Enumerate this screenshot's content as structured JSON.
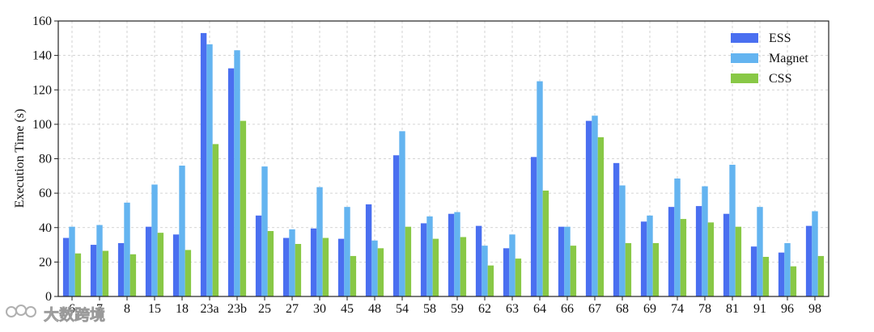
{
  "chart_data": {
    "type": "bar",
    "categories": [
      "6",
      "7",
      "8",
      "15",
      "18",
      "23a",
      "23b",
      "25",
      "27",
      "30",
      "45",
      "48",
      "54",
      "58",
      "59",
      "62",
      "63",
      "64",
      "66",
      "67",
      "68",
      "69",
      "74",
      "78",
      "81",
      "91",
      "96",
      "98"
    ],
    "series": [
      {
        "name": "ESS",
        "color": "#4a6ff0",
        "values": [
          34,
          30,
          31,
          40.5,
          36,
          153,
          132.5,
          47,
          34,
          39.5,
          33.5,
          53.5,
          82,
          42.5,
          48,
          41,
          28,
          81,
          40.5,
          102,
          77.5,
          43.5,
          52,
          52.5,
          48,
          29,
          25.5,
          41
        ]
      },
      {
        "name": "Magnet",
        "color": "#64b4f0",
        "values": [
          40.5,
          41.5,
          54.5,
          65,
          76,
          146.5,
          143,
          75.5,
          39,
          63.5,
          52,
          32.5,
          96,
          46.5,
          49,
          29.5,
          36,
          125,
          40.5,
          105,
          64.5,
          47,
          68.5,
          64,
          76.5,
          52,
          31,
          49.5
        ]
      },
      {
        "name": "CSS",
        "color": "#88c846",
        "values": [
          25,
          26.5,
          24.5,
          37,
          27,
          88.5,
          102,
          38,
          30.5,
          34,
          23.5,
          28,
          40.5,
          33.5,
          34.5,
          18,
          22,
          61.5,
          29.5,
          92.5,
          31,
          31,
          45,
          43,
          40.5,
          23,
          17.5,
          23.5
        ]
      }
    ],
    "xlabel": "",
    "ylabel": "Execution Time (s)",
    "ylim": [
      0,
      160
    ],
    "yticks": [
      0,
      20,
      40,
      60,
      80,
      100,
      120,
      140,
      160
    ],
    "grid": true,
    "legend": "top-right"
  },
  "watermark": {
    "text": "大数跨境",
    "icon": "logo-chain-icon"
  }
}
